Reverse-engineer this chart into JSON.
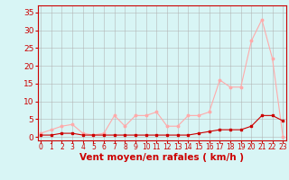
{
  "x": [
    0,
    1,
    2,
    3,
    4,
    5,
    6,
    7,
    8,
    9,
    10,
    11,
    12,
    13,
    14,
    15,
    16,
    17,
    18,
    19,
    20,
    21,
    22,
    23
  ],
  "rafales": [
    1,
    2,
    3,
    3.5,
    1,
    0.5,
    1,
    6,
    3,
    6,
    6,
    7,
    3,
    3,
    6,
    6,
    7,
    16,
    14,
    14,
    27,
    33,
    22,
    0
  ],
  "moyen": [
    0.5,
    0.5,
    1,
    1,
    0.5,
    0.5,
    0.5,
    0.5,
    0.5,
    0.5,
    0.5,
    0.5,
    0.5,
    0.5,
    0.5,
    1,
    1.5,
    2,
    2,
    2,
    3,
    6,
    6,
    4.5
  ],
  "rafales_color": "#ffaaaa",
  "moyen_color": "#cc0000",
  "bg_color": "#d8f5f5",
  "grid_color": "#b0b0b0",
  "xlabel": "Vent moyen/en rafales ( km/h )",
  "ylabel": "",
  "yticks": [
    0,
    5,
    10,
    15,
    20,
    25,
    30,
    35
  ],
  "xticks": [
    0,
    1,
    2,
    3,
    4,
    5,
    6,
    7,
    8,
    9,
    10,
    11,
    12,
    13,
    14,
    15,
    16,
    17,
    18,
    19,
    20,
    21,
    22,
    23
  ],
  "ylim": [
    -1,
    37
  ],
  "xlim": [
    -0.3,
    23.3
  ],
  "axis_color": "#cc0000",
  "tick_color": "#cc0000",
  "xlabel_color": "#cc0000",
  "xlabel_fontsize": 7.5,
  "ytick_fontsize": 6.5,
  "xtick_fontsize": 5.5
}
